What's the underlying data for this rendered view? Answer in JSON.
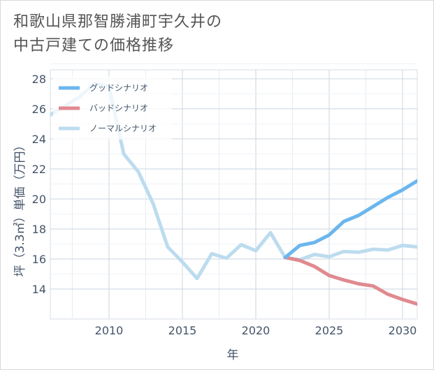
{
  "title_lines": [
    "和歌山県那智勝浦町宇久井の",
    "中古戸建ての価格推移"
  ],
  "chart_data": {
    "type": "line",
    "xlabel": "年",
    "ylabel": "坪（3.3㎡）単価（万円）",
    "xlim": [
      2006,
      2031
    ],
    "ylim": [
      12,
      28.6
    ],
    "xticks": [
      2010,
      2015,
      2020,
      2025,
      2030
    ],
    "yticks": [
      14,
      16,
      18,
      20,
      22,
      24,
      26,
      28
    ],
    "grid": true,
    "legend_position": "top-left",
    "series": [
      {
        "name": "グッドシナリオ",
        "color": "#6bb6ee",
        "points": [
          [
            2022,
            16.1
          ],
          [
            2023,
            16.9
          ],
          [
            2024,
            17.1
          ],
          [
            2025,
            17.6
          ],
          [
            2026,
            18.5
          ],
          [
            2027,
            18.9
          ],
          [
            2028,
            19.5
          ],
          [
            2029,
            20.1
          ],
          [
            2030,
            20.6
          ],
          [
            2031,
            21.2
          ]
        ]
      },
      {
        "name": "バッドシナリオ",
        "color": "#e08a90",
        "points": [
          [
            2022,
            16.1
          ],
          [
            2023,
            15.9
          ],
          [
            2024,
            15.5
          ],
          [
            2025,
            14.9
          ],
          [
            2026,
            14.6
          ],
          [
            2027,
            14.35
          ],
          [
            2028,
            14.2
          ],
          [
            2029,
            13.65
          ],
          [
            2030,
            13.3
          ],
          [
            2031,
            13.0
          ]
        ]
      },
      {
        "name": "ノーマルシナリオ",
        "color": "#bcdcee",
        "points": [
          [
            2006,
            25.6
          ],
          [
            2008,
            26.8
          ],
          [
            2009,
            27.7
          ],
          [
            2010,
            27.5
          ],
          [
            2011,
            23.0
          ],
          [
            2012,
            21.8
          ],
          [
            2013,
            19.7
          ],
          [
            2014,
            16.8
          ],
          [
            2015,
            15.8
          ],
          [
            2016,
            14.7
          ],
          [
            2017,
            16.35
          ],
          [
            2018,
            16.05
          ],
          [
            2019,
            16.95
          ],
          [
            2020,
            16.55
          ],
          [
            2021,
            17.75
          ],
          [
            2022,
            16.1
          ],
          [
            2023,
            15.95
          ],
          [
            2024,
            16.3
          ],
          [
            2025,
            16.15
          ],
          [
            2026,
            16.5
          ],
          [
            2027,
            16.45
          ],
          [
            2028,
            16.65
          ],
          [
            2029,
            16.6
          ],
          [
            2030,
            16.9
          ],
          [
            2031,
            16.8
          ]
        ]
      }
    ]
  }
}
